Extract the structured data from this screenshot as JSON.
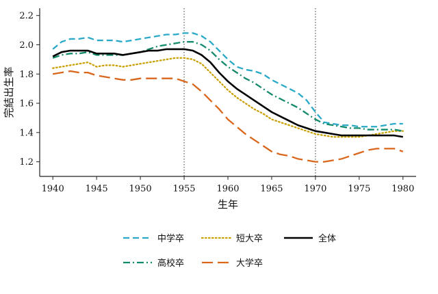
{
  "chart_data": {
    "type": "line",
    "xlabel": "生年",
    "ylabel": "完結出生率",
    "xlim": [
      1938.5,
      1981.5
    ],
    "ylim": [
      1.1,
      2.25
    ],
    "xticks": [
      1940,
      1945,
      1950,
      1955,
      1960,
      1965,
      1970,
      1975,
      1980
    ],
    "yticks": [
      1.2,
      1.4,
      1.6,
      1.8,
      2.0,
      2.2
    ],
    "ytick_labels": [
      "1.2",
      "1.4",
      "1.6",
      "1.8",
      "2.0",
      "2.2"
    ],
    "vlines": [
      1955,
      1970
    ],
    "grid": false,
    "legend_position": "bottom",
    "series": [
      {
        "name": "中学卒",
        "color": "#29a9c7",
        "dash": "dashed",
        "x": [
          1940,
          1941,
          1942,
          1943,
          1944,
          1945,
          1946,
          1947,
          1948,
          1949,
          1950,
          1951,
          1952,
          1953,
          1954,
          1955,
          1956,
          1957,
          1958,
          1959,
          1960,
          1961,
          1962,
          1963,
          1964,
          1965,
          1966,
          1967,
          1968,
          1969,
          1970,
          1971,
          1972,
          1973,
          1974,
          1975,
          1976,
          1977,
          1978,
          1979,
          1980
        ],
        "y": [
          1.97,
          2.02,
          2.04,
          2.04,
          2.05,
          2.03,
          2.03,
          2.03,
          2.02,
          2.03,
          2.04,
          2.05,
          2.06,
          2.07,
          2.07,
          2.08,
          2.08,
          2.06,
          2.02,
          1.96,
          1.9,
          1.85,
          1.83,
          1.82,
          1.8,
          1.76,
          1.73,
          1.7,
          1.67,
          1.62,
          1.54,
          1.47,
          1.46,
          1.45,
          1.45,
          1.44,
          1.44,
          1.44,
          1.45,
          1.46,
          1.46
        ]
      },
      {
        "name": "短大卒",
        "color": "#c9a000",
        "dash": "dotted",
        "x": [
          1940,
          1941,
          1942,
          1943,
          1944,
          1945,
          1946,
          1947,
          1948,
          1949,
          1950,
          1951,
          1952,
          1953,
          1954,
          1955,
          1956,
          1957,
          1958,
          1959,
          1960,
          1961,
          1962,
          1963,
          1964,
          1965,
          1966,
          1967,
          1968,
          1969,
          1970,
          1971,
          1972,
          1973,
          1974,
          1975,
          1976,
          1977,
          1978,
          1979,
          1980
        ],
        "y": [
          1.84,
          1.85,
          1.86,
          1.87,
          1.88,
          1.85,
          1.86,
          1.86,
          1.85,
          1.86,
          1.87,
          1.88,
          1.89,
          1.9,
          1.91,
          1.91,
          1.9,
          1.87,
          1.81,
          1.75,
          1.69,
          1.64,
          1.6,
          1.56,
          1.53,
          1.49,
          1.47,
          1.45,
          1.43,
          1.41,
          1.39,
          1.38,
          1.37,
          1.37,
          1.37,
          1.37,
          1.38,
          1.39,
          1.4,
          1.41,
          1.41
        ]
      },
      {
        "name": "全体",
        "color": "#000000",
        "dash": "solid",
        "x": [
          1940,
          1941,
          1942,
          1943,
          1944,
          1945,
          1946,
          1947,
          1948,
          1949,
          1950,
          1951,
          1952,
          1953,
          1954,
          1955,
          1956,
          1957,
          1958,
          1959,
          1960,
          1961,
          1962,
          1963,
          1964,
          1965,
          1966,
          1967,
          1968,
          1969,
          1970,
          1971,
          1972,
          1973,
          1974,
          1975,
          1976,
          1977,
          1978,
          1979,
          1980
        ],
        "y": [
          1.92,
          1.95,
          1.96,
          1.96,
          1.96,
          1.94,
          1.94,
          1.94,
          1.93,
          1.94,
          1.95,
          1.96,
          1.96,
          1.97,
          1.97,
          1.97,
          1.96,
          1.93,
          1.88,
          1.81,
          1.75,
          1.7,
          1.66,
          1.62,
          1.58,
          1.54,
          1.51,
          1.48,
          1.45,
          1.43,
          1.41,
          1.4,
          1.39,
          1.38,
          1.38,
          1.38,
          1.38,
          1.38,
          1.38,
          1.38,
          1.37
        ]
      },
      {
        "name": "高校卒",
        "color": "#138a6b",
        "dash": "dashdot",
        "x": [
          1940,
          1941,
          1942,
          1943,
          1944,
          1945,
          1946,
          1947,
          1948,
          1949,
          1950,
          1951,
          1952,
          1953,
          1954,
          1955,
          1956,
          1957,
          1958,
          1959,
          1960,
          1961,
          1962,
          1963,
          1964,
          1965,
          1966,
          1967,
          1968,
          1969,
          1970,
          1971,
          1972,
          1973,
          1974,
          1975,
          1976,
          1977,
          1978,
          1979,
          1980
        ],
        "y": [
          1.91,
          1.93,
          1.94,
          1.94,
          1.95,
          1.93,
          1.93,
          1.93,
          1.93,
          1.94,
          1.95,
          1.97,
          1.99,
          2.0,
          2.01,
          2.02,
          2.02,
          2.0,
          1.96,
          1.9,
          1.85,
          1.81,
          1.77,
          1.74,
          1.7,
          1.66,
          1.63,
          1.6,
          1.57,
          1.53,
          1.49,
          1.46,
          1.45,
          1.44,
          1.43,
          1.43,
          1.42,
          1.42,
          1.42,
          1.42,
          1.41
        ]
      },
      {
        "name": "大学卒",
        "color": "#d9661a",
        "dash": "longdash",
        "x": [
          1940,
          1941,
          1942,
          1943,
          1944,
          1945,
          1946,
          1947,
          1948,
          1949,
          1950,
          1951,
          1952,
          1953,
          1954,
          1955,
          1956,
          1957,
          1958,
          1959,
          1960,
          1961,
          1962,
          1963,
          1964,
          1965,
          1966,
          1967,
          1968,
          1969,
          1970,
          1971,
          1972,
          1973,
          1974,
          1975,
          1976,
          1977,
          1978,
          1979,
          1980
        ],
        "y": [
          1.8,
          1.81,
          1.82,
          1.81,
          1.81,
          1.79,
          1.78,
          1.77,
          1.76,
          1.76,
          1.77,
          1.77,
          1.77,
          1.77,
          1.77,
          1.75,
          1.73,
          1.68,
          1.62,
          1.56,
          1.49,
          1.44,
          1.39,
          1.35,
          1.31,
          1.27,
          1.25,
          1.24,
          1.22,
          1.21,
          1.2,
          1.2,
          1.21,
          1.22,
          1.24,
          1.26,
          1.28,
          1.29,
          1.29,
          1.29,
          1.27
        ]
      }
    ],
    "legend_rows": [
      [
        "中学卒",
        "短大卒",
        "全体"
      ],
      [
        "高校卒",
        "大学卒"
      ]
    ]
  }
}
